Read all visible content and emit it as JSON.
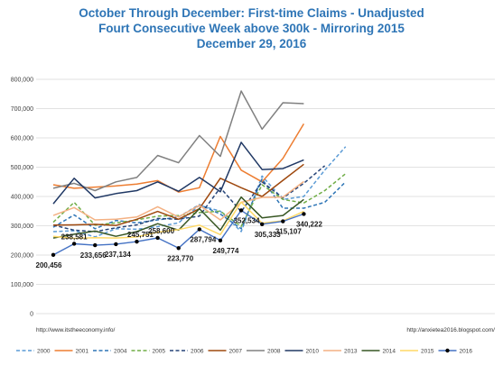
{
  "chart_data": {
    "type": "line",
    "title_lines": [
      "October Through December: First-time Claims - Unadjusted",
      "Fourt Consecutive Week above 300k - Mirroring 2015",
      "December 29, 2016"
    ],
    "ylim": [
      0,
      800000
    ],
    "yticks": [
      "0",
      "100,000",
      "200,000",
      "300,000",
      "400,000",
      "500,000",
      "600,000",
      "700,000",
      "800,000"
    ],
    "grid": true,
    "legend_position": "bottom",
    "source_left": "http://www.itstheeconomy.info/",
    "source_right": "http://anxietea2016.blogspot.com/",
    "series": [
      {
        "name": "2000",
        "color": "#5b9bd5",
        "dash": "dashed",
        "values": [
          280000,
          283000,
          262000,
          290000,
          288000,
          297000,
          310000,
          370000,
          350000,
          280000,
          470000,
          390000,
          400000,
          490000,
          570000
        ]
      },
      {
        "name": "2001",
        "color": "#ed7d31",
        "dash": "solid",
        "values": [
          440000,
          428000,
          432000,
          436000,
          442000,
          454000,
          415000,
          430000,
          605000,
          490000,
          450000,
          530000,
          648000
        ]
      },
      {
        "name": "2004",
        "color": "#2e75b6",
        "dash": "dashed",
        "values": [
          295000,
          337000,
          290000,
          318000,
          310000,
          320000,
          330000,
          372000,
          340000,
          290000,
          460000,
          360000,
          360000,
          380000,
          450000
        ]
      },
      {
        "name": "2005",
        "color": "#70ad47",
        "dash": "dashed",
        "values": [
          312000,
          380000,
          302000,
          310000,
          320000,
          333000,
          335000,
          345000,
          350000,
          298000,
          440000,
          390000,
          378000,
          420000,
          478000
        ]
      },
      {
        "name": "2006",
        "color": "#264478",
        "dash": "dashed",
        "values": [
          302000,
          285000,
          280000,
          293000,
          303000,
          325000,
          322000,
          333000,
          430000,
          348000,
          450000,
          395000,
          445000,
          505000
        ]
      },
      {
        "name": "2007",
        "color": "#9e480e",
        "dash": "solid",
        "values": [
          302000,
          303000,
          305000,
          301000,
          322000,
          349000,
          322000,
          358000,
          462000,
          430000,
          400000,
          455000,
          510000
        ]
      },
      {
        "name": "2008",
        "color": "#808080",
        "dash": "solid",
        "values": [
          428000,
          445000,
          420000,
          450000,
          465000,
          540000,
          515000,
          608000,
          537000,
          760000,
          630000,
          720000,
          717000
        ]
      },
      {
        "name": "2010",
        "color": "#203864",
        "dash": "solid",
        "values": [
          375000,
          462000,
          395000,
          410000,
          420000,
          450000,
          418000,
          465000,
          416000,
          585000,
          492000,
          495000,
          525000
        ]
      },
      {
        "name": "2013",
        "color": "#f4b183",
        "dash": "solid",
        "values": [
          335000,
          362000,
          320000,
          322000,
          330000,
          365000,
          330000,
          370000,
          320000,
          380000,
          397000,
          398000,
          451000
        ]
      },
      {
        "name": "2014",
        "color": "#375623",
        "dash": "solid",
        "values": [
          258000,
          271000,
          282000,
          264000,
          280000,
          307000,
          285000,
          358000,
          285000,
          398000,
          327000,
          335000,
          390000
        ]
      },
      {
        "name": "2015",
        "color": "#ffd966",
        "dash": "solid",
        "values": [
          264000,
          257000,
          259000,
          258000,
          262000,
          278000,
          287000,
          302000,
          270000,
          381000,
          309000,
          317000,
          349000
        ]
      },
      {
        "name": "2016",
        "color": "#4472c4",
        "dash": "solid",
        "marker": "dot",
        "values": [
          200456,
          238581,
          233656,
          237134,
          245751,
          258600,
          223770,
          287794,
          249774,
          352534,
          305333,
          315107,
          340222
        ]
      }
    ],
    "annotations": [
      "200,456",
      "238,581",
      "233,656",
      "237,134",
      "245,751",
      "258,600",
      "223,770",
      "287,794",
      "249,774",
      "352,534",
      "305,333",
      "315,107",
      "340,222"
    ]
  }
}
